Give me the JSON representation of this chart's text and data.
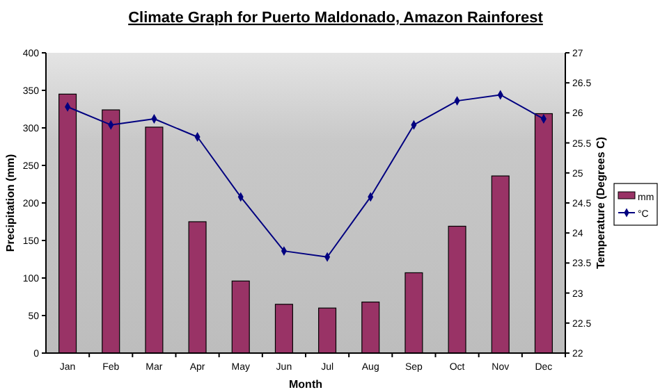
{
  "chart_data": {
    "type": "bar",
    "title": "Climate Graph for Puerto Maldonado, Amazon Rainforest",
    "xlabel": "Month",
    "ylabel": "Precipitation (mm)",
    "y2label": "Temperature (Degrees C)",
    "categories": [
      "Jan",
      "Feb",
      "Mar",
      "Apr",
      "May",
      "Jun",
      "Jul",
      "Aug",
      "Sep",
      "Oct",
      "Nov",
      "Dec"
    ],
    "series": [
      {
        "name": "mm",
        "color": "#993366",
        "values": [
          345,
          324,
          301,
          175,
          96,
          65,
          60,
          68,
          107,
          169,
          236,
          319
        ]
      },
      {
        "name": "°C",
        "type": "line",
        "axis": "y2",
        "color": "#000080",
        "marker": "diamond",
        "values": [
          26.1,
          25.8,
          25.9,
          25.6,
          24.6,
          23.7,
          23.6,
          24.6,
          25.8,
          26.2,
          26.3,
          25.9
        ]
      }
    ],
    "ylim": [
      0,
      400
    ],
    "yticks": [
      0,
      50,
      100,
      150,
      200,
      250,
      300,
      350,
      400
    ],
    "y2lim": [
      22,
      27
    ],
    "y2ticks": [
      22,
      22.5,
      23,
      23.5,
      24,
      24.5,
      25,
      25.5,
      26,
      26.5,
      27
    ],
    "legend": "right",
    "grid": false
  }
}
